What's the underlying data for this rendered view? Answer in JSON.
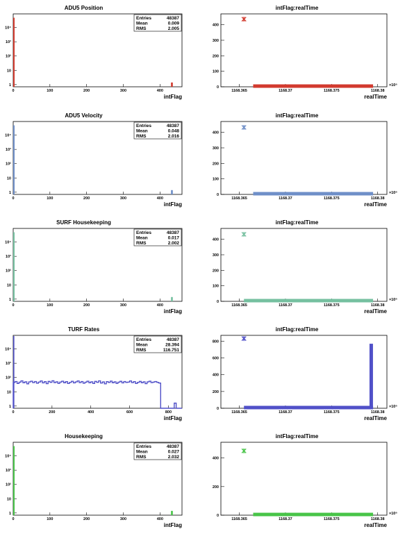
{
  "chart_data": [
    {
      "type": "histogram",
      "title": "ADU5 Position",
      "xlabel": "intFlag",
      "ylabel": "",
      "log_y": true,
      "xlim": [
        0,
        460
      ],
      "ylim": [
        0.7,
        90000
      ],
      "x_ticks": [
        0,
        100,
        200,
        300,
        400
      ],
      "y_ticks": [
        {
          "v": 1,
          "label": "1"
        },
        {
          "v": 10,
          "label": "10"
        },
        {
          "v": 100,
          "label": "10²"
        },
        {
          "v": 1000,
          "label": "10³"
        },
        {
          "v": 10000,
          "label": "10⁴"
        }
      ],
      "color": "#d23a2e",
      "stats": {
        "entries_label": "Entries",
        "entries": "48387",
        "mean_label": "Mean",
        "mean": "0.009",
        "rms_label": "RMS",
        "rms": "2.005"
      },
      "bins": [
        {
          "x": 0,
          "w": 3,
          "y": 48386
        },
        {
          "x": 430,
          "w": 5,
          "y": 1.4
        }
      ]
    },
    {
      "type": "scatter",
      "title": "intFlag:realTime",
      "xlabel": "realTime",
      "ylabel": "",
      "xlim": [
        1168.363,
        1168.381
      ],
      "ylim": [
        0,
        470
      ],
      "x_ticks": [
        {
          "v": 1168.365,
          "label": "1168.365"
        },
        {
          "v": 1168.37,
          "label": "1168.37"
        },
        {
          "v": 1168.375,
          "label": "1168.375"
        },
        {
          "v": 1168.38,
          "label": "1168.38"
        }
      ],
      "x_exponent": "×10⁶",
      "y_ticks": [
        0,
        100,
        200,
        300,
        400
      ],
      "color": "#d23a2e",
      "band": {
        "x0": 1168.3665,
        "x1": 1168.3795,
        "y": 0
      },
      "points": [
        {
          "x": 1168.3655,
          "y": 436
        }
      ]
    },
    {
      "type": "histogram",
      "title": "ADU5 Velocity",
      "xlabel": "intFlag",
      "ylabel": "",
      "log_y": true,
      "xlim": [
        0,
        460
      ],
      "ylim": [
        0.7,
        90000
      ],
      "x_ticks": [
        0,
        100,
        200,
        300,
        400
      ],
      "y_ticks": [
        {
          "v": 1,
          "label": "1"
        },
        {
          "v": 10,
          "label": "10"
        },
        {
          "v": 100,
          "label": "10²"
        },
        {
          "v": 1000,
          "label": "10³"
        },
        {
          "v": 10000,
          "label": "10⁴"
        }
      ],
      "color": "#6f8fc8",
      "stats": {
        "entries_label": "Entries",
        "entries": "48387",
        "mean_label": "Mean",
        "mean": "0.048",
        "rms_label": "RMS",
        "rms": "2.016"
      },
      "bins": [
        {
          "x": 0,
          "w": 3,
          "y": 48386
        },
        {
          "x": 430,
          "w": 5,
          "y": 1.4
        }
      ]
    },
    {
      "type": "scatter",
      "title": "intFlag:realTime",
      "xlabel": "realTime",
      "ylabel": "",
      "xlim": [
        1168.363,
        1168.381
      ],
      "ylim": [
        0,
        470
      ],
      "x_ticks": [
        {
          "v": 1168.365,
          "label": "1168.365"
        },
        {
          "v": 1168.37,
          "label": "1168.37"
        },
        {
          "v": 1168.375,
          "label": "1168.375"
        },
        {
          "v": 1168.38,
          "label": "1168.38"
        }
      ],
      "x_exponent": "×10⁶",
      "y_ticks": [
        0,
        100,
        200,
        300,
        400
      ],
      "color": "#6f8fc8",
      "band": {
        "x0": 1168.3665,
        "x1": 1168.3795,
        "y": 0
      },
      "points": [
        {
          "x": 1168.3655,
          "y": 432
        }
      ]
    },
    {
      "type": "histogram",
      "title": "SURF Housekeeping",
      "xlabel": "intFlag",
      "ylabel": "",
      "log_y": true,
      "xlim": [
        0,
        460
      ],
      "ylim": [
        0.7,
        90000
      ],
      "x_ticks": [
        0,
        100,
        200,
        300,
        400
      ],
      "y_ticks": [
        {
          "v": 1,
          "label": "1"
        },
        {
          "v": 10,
          "label": "10"
        },
        {
          "v": 100,
          "label": "10²"
        },
        {
          "v": 1000,
          "label": "10³"
        },
        {
          "v": 10000,
          "label": "10⁴"
        }
      ],
      "color": "#76c0a0",
      "stats": {
        "entries_label": "Entries",
        "entries": "48387",
        "mean_label": "Mean",
        "mean": "0.017",
        "rms_label": "RMS",
        "rms": "2.002"
      },
      "bins": [
        {
          "x": 0,
          "w": 3,
          "y": 48386
        },
        {
          "x": 430,
          "w": 5,
          "y": 1.4
        }
      ]
    },
    {
      "type": "scatter",
      "title": "intFlag:realTime",
      "xlabel": "realTime",
      "ylabel": "",
      "xlim": [
        1168.363,
        1168.381
      ],
      "ylim": [
        0,
        470
      ],
      "x_ticks": [
        {
          "v": 1168.365,
          "label": "1168.365"
        },
        {
          "v": 1168.37,
          "label": "1168.37"
        },
        {
          "v": 1168.375,
          "label": "1168.375"
        },
        {
          "v": 1168.38,
          "label": "1168.38"
        }
      ],
      "x_exponent": "×10⁶",
      "y_ticks": [
        0,
        100,
        200,
        300,
        400
      ],
      "color": "#76c0a0",
      "band": {
        "x0": 1168.3655,
        "x1": 1168.3795,
        "y": 0
      },
      "points": [
        {
          "x": 1168.3655,
          "y": 432
        }
      ]
    },
    {
      "type": "histogram",
      "title": "TURF Rates",
      "xlabel": "intFlag",
      "ylabel": "",
      "log_y": true,
      "xlim": [
        0,
        870
      ],
      "ylim": [
        0.7,
        90000
      ],
      "x_ticks": [
        0,
        200,
        400,
        600,
        800
      ],
      "y_ticks": [
        {
          "v": 1,
          "label": "1"
        },
        {
          "v": 10,
          "label": "10"
        },
        {
          "v": 100,
          "label": "10²"
        },
        {
          "v": 1000,
          "label": "10³"
        },
        {
          "v": 10000,
          "label": "10⁴"
        }
      ],
      "color": "#5050c8",
      "stats": {
        "entries_label": "Entries",
        "entries": "48387",
        "mean_label": "Mean",
        "mean": "28.394",
        "rms_label": "RMS",
        "rms": "116.751"
      },
      "hist_step": {
        "x0": 0,
        "bin_width": 10,
        "values": [
          45,
          52,
          38,
          47,
          58,
          43,
          50,
          36,
          49,
          55,
          44,
          52,
          40,
          48,
          57,
          42,
          51,
          37,
          53,
          46,
          59,
          44,
          50,
          39,
          48,
          55,
          43,
          51,
          38,
          46,
          54,
          42,
          49,
          57,
          44,
          52,
          40,
          47,
          55,
          43,
          50,
          38,
          53,
          46,
          58,
          41,
          49,
          36,
          51,
          45,
          56,
          43,
          50,
          39,
          47,
          54,
          42,
          52,
          45,
          48,
          57,
          44,
          51,
          38,
          46,
          53,
          43,
          50,
          37,
          49,
          55,
          44,
          48,
          52,
          46,
          41,
          0.3,
          0.3,
          0.3,
          0.3,
          0.3,
          0.3,
          0.3,
          1.6,
          0.3,
          0.3,
          0.3
        ]
      },
      "overflow_spike": {
        "x": 3,
        "y": 48000
      }
    },
    {
      "type": "scatter",
      "title": "intFlag:realTime",
      "xlabel": "realTime",
      "ylabel": "",
      "xlim": [
        1168.363,
        1168.381
      ],
      "ylim": [
        0,
        870
      ],
      "x_ticks": [
        {
          "v": 1168.365,
          "label": "1168.365"
        },
        {
          "v": 1168.37,
          "label": "1168.37"
        },
        {
          "v": 1168.375,
          "label": "1168.375"
        },
        {
          "v": 1168.38,
          "label": "1168.38"
        }
      ],
      "x_exponent": "×10⁶",
      "y_ticks": [
        0,
        200,
        400,
        600,
        800
      ],
      "color": "#5050c8",
      "band": {
        "x0": 1168.3655,
        "x1": 1168.3795,
        "y": 0
      },
      "vband": {
        "x": 1168.3793,
        "y0": 0,
        "y1": 770
      },
      "points": [
        {
          "x": 1168.3655,
          "y": 832
        }
      ]
    },
    {
      "type": "histogram",
      "title": "Housekeeping",
      "xlabel": "intFlag",
      "ylabel": "",
      "log_y": true,
      "xlim": [
        0,
        460
      ],
      "ylim": [
        0.7,
        90000
      ],
      "x_ticks": [
        0,
        100,
        200,
        300,
        400
      ],
      "y_ticks": [
        {
          "v": 1,
          "label": "1"
        },
        {
          "v": 10,
          "label": "10"
        },
        {
          "v": 100,
          "label": "10²"
        },
        {
          "v": 1000,
          "label": "10³"
        },
        {
          "v": 10000,
          "label": "10⁴"
        }
      ],
      "color": "#48c448",
      "stats": {
        "entries_label": "Entries",
        "entries": "48387",
        "mean_label": "Mean",
        "mean": "0.027",
        "rms_label": "RMS",
        "rms": "2.032"
      },
      "bins": [
        {
          "x": 0,
          "w": 3,
          "y": 48386
        },
        {
          "x": 430,
          "w": 5,
          "y": 1.4
        }
      ]
    },
    {
      "type": "scatter",
      "title": "intFlag:realTime",
      "xlabel": "realTime",
      "ylabel": "",
      "xlim": [
        1168.363,
        1168.381
      ],
      "ylim": [
        0,
        510
      ],
      "x_ticks": [
        {
          "v": 1168.365,
          "label": "1168.365"
        },
        {
          "v": 1168.37,
          "label": "1168.37"
        },
        {
          "v": 1168.375,
          "label": "1168.375"
        },
        {
          "v": 1168.38,
          "label": "1168.38"
        }
      ],
      "x_exponent": "×10⁶",
      "y_ticks": [
        0,
        200,
        400
      ],
      "color": "#48c448",
      "band": {
        "x0": 1168.3665,
        "x1": 1168.3795,
        "y": 0
      },
      "points": [
        {
          "x": 1168.3655,
          "y": 450
        }
      ]
    }
  ]
}
